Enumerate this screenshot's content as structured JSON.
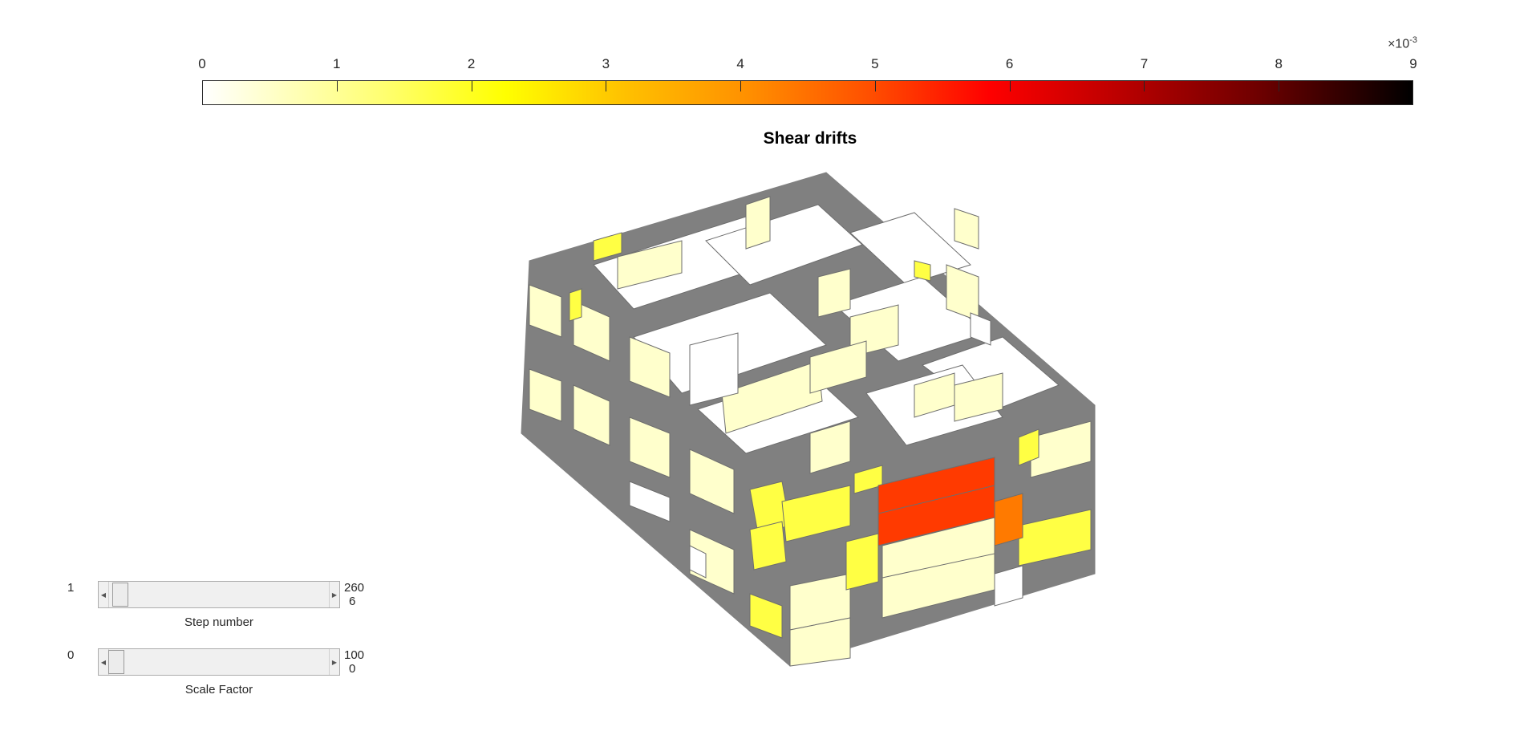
{
  "colorbar": {
    "exponent_prefix": "×10",
    "exponent_power": "-3",
    "tick_labels": [
      "0",
      "1",
      "2",
      "3",
      "4",
      "5",
      "6",
      "7",
      "8",
      "9"
    ]
  },
  "plot": {
    "title": "Shear drifts"
  },
  "colors": {
    "wall_gray": "#808080",
    "pale_yellow": "#ffffcc",
    "light_yellow": "#ffff66",
    "yellow": "#ffff33",
    "orange": "#ff7a00",
    "red_orange": "#ff3a00"
  },
  "sliders": {
    "step": {
      "min": "1",
      "max": "260",
      "value": "6",
      "label": "Step number",
      "fraction": 0.019
    },
    "scale": {
      "min": "0",
      "max": "100",
      "value": "0",
      "label": "Scale Factor",
      "fraction": 0.0
    }
  }
}
